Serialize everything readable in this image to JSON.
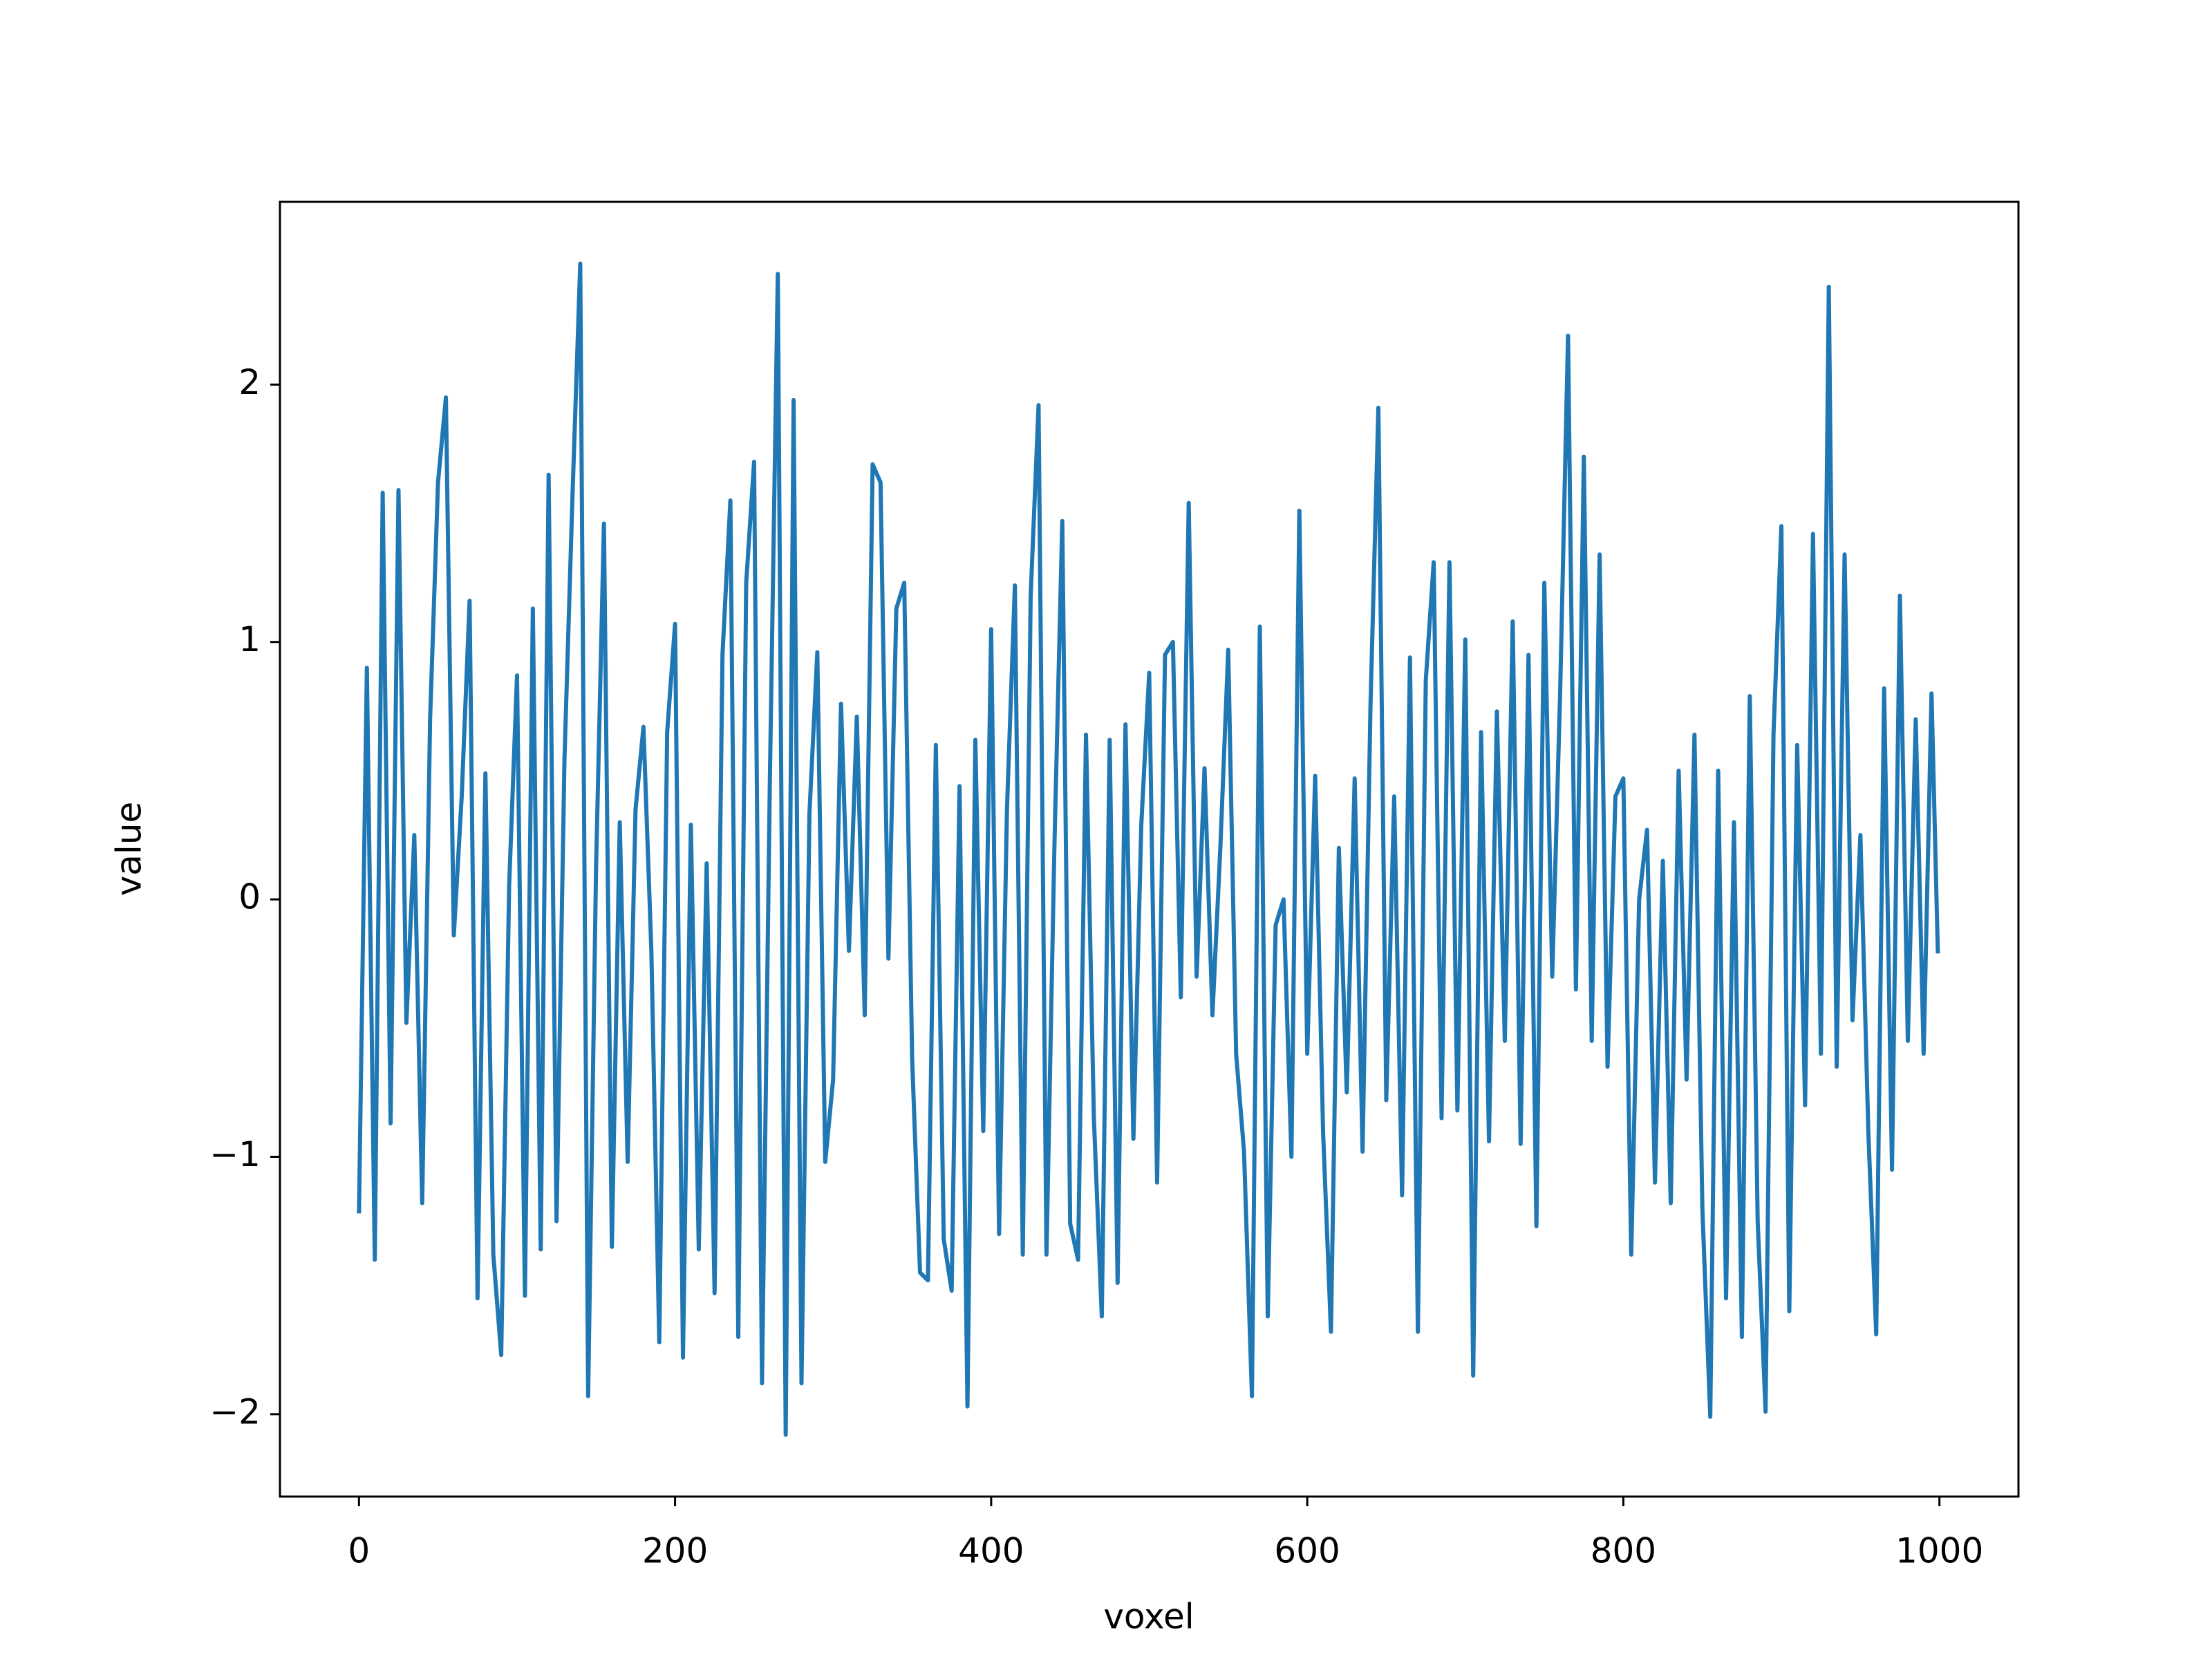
{
  "chart_data": {
    "type": "line",
    "x_label": "voxel",
    "y_label": "value",
    "color": "#1f77b4",
    "xlim": [
      -50,
      1050
    ],
    "ylim": [
      -2.32,
      2.71
    ],
    "xticks": [
      0,
      200,
      400,
      600,
      800,
      1000
    ],
    "yticks": [
      {
        "value": -2,
        "label": "−2"
      },
      {
        "value": -1,
        "label": "−1"
      },
      0,
      1,
      2
    ],
    "x": [
      0,
      5,
      10,
      15,
      20,
      25,
      30,
      35,
      40,
      45,
      50,
      55,
      60,
      65,
      70,
      75,
      80,
      85,
      90,
      95,
      100,
      105,
      110,
      115,
      120,
      125,
      130,
      135,
      140,
      145,
      150,
      155,
      160,
      165,
      170,
      175,
      180,
      185,
      190,
      195,
      200,
      205,
      210,
      215,
      220,
      225,
      230,
      235,
      240,
      245,
      250,
      255,
      260,
      265,
      270,
      275,
      280,
      285,
      290,
      295,
      300,
      305,
      310,
      315,
      320,
      325,
      330,
      335,
      340,
      345,
      350,
      355,
      360,
      365,
      370,
      375,
      380,
      385,
      390,
      395,
      400,
      405,
      410,
      415,
      420,
      425,
      430,
      435,
      440,
      445,
      450,
      455,
      460,
      465,
      470,
      475,
      480,
      485,
      490,
      495,
      500,
      505,
      510,
      515,
      520,
      525,
      530,
      535,
      540,
      545,
      550,
      555,
      560,
      565,
      570,
      575,
      580,
      585,
      590,
      595,
      600,
      605,
      610,
      615,
      620,
      625,
      630,
      635,
      640,
      645,
      650,
      655,
      660,
      665,
      670,
      675,
      680,
      685,
      690,
      695,
      700,
      705,
      710,
      715,
      720,
      725,
      730,
      735,
      740,
      745,
      750,
      755,
      760,
      765,
      770,
      775,
      780,
      785,
      790,
      795,
      800,
      805,
      810,
      815,
      820,
      825,
      830,
      835,
      840,
      845,
      850,
      855,
      860,
      865,
      870,
      875,
      880,
      885,
      890,
      895,
      900,
      905,
      910,
      915,
      920,
      925,
      930,
      935,
      940,
      945,
      950,
      955,
      960,
      965,
      970,
      975,
      980,
      985,
      990,
      995,
      999
    ],
    "values": [
      -1.22,
      0.9,
      -1.4,
      1.58,
      -0.87,
      1.59,
      -0.48,
      0.25,
      -1.18,
      0.7,
      1.62,
      1.95,
      -0.14,
      0.4,
      1.16,
      -1.55,
      0.49,
      -1.38,
      -1.77,
      0.05,
      0.87,
      -1.54,
      1.13,
      -1.36,
      1.65,
      -1.25,
      0.54,
      1.55,
      2.47,
      -1.93,
      0.12,
      1.46,
      -1.35,
      0.3,
      -1.02,
      0.35,
      0.67,
      -0.2,
      -1.72,
      0.65,
      1.07,
      -1.78,
      0.29,
      -1.36,
      0.14,
      -1.53,
      0.95,
      1.55,
      -1.7,
      1.23,
      1.7,
      -1.88,
      0.47,
      2.43,
      -2.08,
      1.94,
      -1.88,
      0.33,
      0.96,
      -1.02,
      -0.7,
      0.76,
      -0.2,
      0.71,
      -0.45,
      1.69,
      1.62,
      -0.23,
      1.13,
      1.23,
      -0.62,
      -1.45,
      -1.48,
      0.6,
      -1.32,
      -1.52,
      0.44,
      -1.97,
      0.62,
      -0.9,
      1.05,
      -1.3,
      0.35,
      1.22,
      -1.38,
      1.18,
      1.92,
      -1.38,
      0.2,
      1.47,
      -1.26,
      -1.4,
      0.64,
      -0.85,
      -1.62,
      0.62,
      -1.49,
      0.68,
      -0.93,
      0.29,
      0.88,
      -1.1,
      0.95,
      1.0,
      -0.38,
      1.54,
      -0.3,
      0.51,
      -0.45,
      0.2,
      0.97,
      -0.6,
      -0.98,
      -1.93,
      1.06,
      -1.62,
      -0.1,
      0.0,
      -1.0,
      1.51,
      -0.6,
      0.48,
      -0.9,
      -1.68,
      0.2,
      -0.75,
      0.47,
      -0.98,
      0.75,
      1.91,
      -0.78,
      0.4,
      -1.15,
      0.94,
      -1.68,
      0.85,
      1.31,
      -0.85,
      1.31,
      -0.82,
      1.01,
      -1.85,
      0.65,
      -0.94,
      0.73,
      -0.55,
      1.08,
      -0.95,
      0.95,
      -1.27,
      1.23,
      -0.3,
      0.8,
      2.19,
      -0.35,
      1.72,
      -0.55,
      1.34,
      -0.65,
      0.4,
      0.47,
      -1.38,
      0.0,
      0.27,
      -1.1,
      0.15,
      -1.18,
      0.5,
      -0.7,
      0.64,
      -1.2,
      -2.01,
      0.5,
      -1.55,
      0.3,
      -1.7,
      0.79,
      -1.25,
      -1.99,
      0.64,
      1.45,
      -1.6,
      0.6,
      -0.8,
      1.42,
      -0.6,
      2.38,
      -0.65,
      1.34,
      -0.47,
      0.25,
      -0.9,
      -1.69,
      0.82,
      -1.05,
      1.18,
      -0.55,
      0.7,
      -0.6,
      0.8,
      -0.21
    ]
  }
}
